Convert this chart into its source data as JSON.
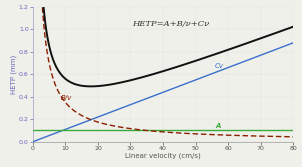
{
  "title": "HETP=A+B/ν+Cν",
  "xlabel": "Linear velocity (cm/s)",
  "ylabel": "HETP (mm)",
  "xlim": [
    0,
    80
  ],
  "ylim": [
    0,
    1.2
  ],
  "A": 0.1,
  "B": 3.5,
  "C": 0.011,
  "xticks": [
    0,
    10,
    20,
    30,
    40,
    50,
    60,
    70,
    80
  ],
  "yticks": [
    0.0,
    0.2,
    0.4,
    0.6,
    0.8,
    1.0,
    1.2
  ],
  "color_total": "#111111",
  "color_Bv": "#8B2000",
  "color_Cv": "#3a6fcc",
  "color_A": "#3aaa3a",
  "background_color": "#f0f0eb",
  "label_Bv": "B/v",
  "label_Cv": "Cv",
  "label_A": "A",
  "figsize": [
    3.02,
    1.67
  ],
  "dpi": 100
}
